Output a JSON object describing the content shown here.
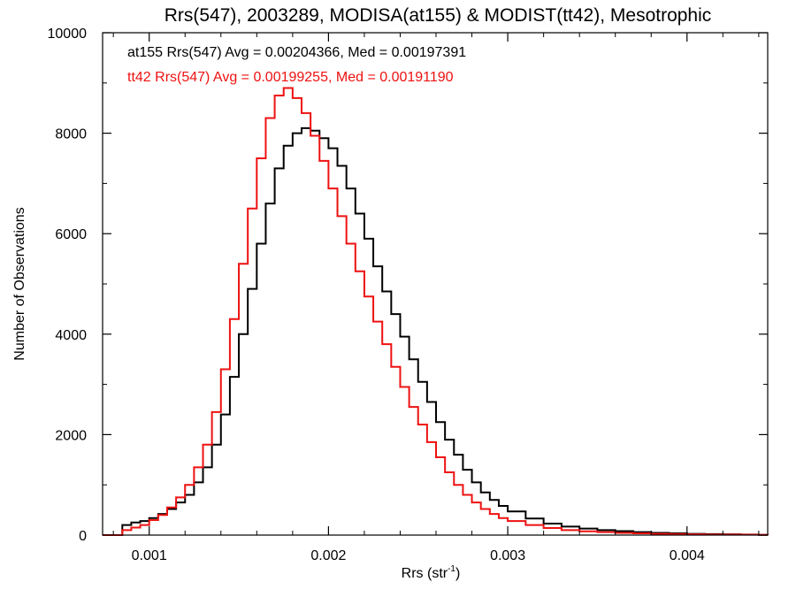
{
  "chart_data": {
    "type": "line",
    "step": true,
    "title": "Rrs(547), 2003289, MODISA(at155) & MODIST(tt42), Mesotrophic",
    "xlabel": "Rrs (str",
    "xlabel_sup": "-1",
    "xlabel_suffix": ")",
    "ylabel": "Number of Observations",
    "xlim": [
      0.00074,
      0.00445
    ],
    "ylim": [
      0,
      10000
    ],
    "x_ticks": [
      0.001,
      0.002,
      0.003,
      0.004
    ],
    "x_tick_labels": [
      "0.001",
      "0.002",
      "0.003",
      "0.004"
    ],
    "y_ticks": [
      0,
      2000,
      4000,
      6000,
      8000,
      10000
    ],
    "y_tick_labels": [
      "0",
      "2000",
      "4000",
      "6000",
      "8000",
      "10000"
    ],
    "grid": false,
    "legend_placement": "top-left",
    "annotations": [
      {
        "text": "at155 Rrs(547) Avg = 0.00204366, Med = 0.00197391",
        "color": "#000000"
      },
      {
        "text": "tt42 Rrs(547) Avg = 0.00199255, Med = 0.00191190",
        "color": "#ee1111"
      }
    ],
    "series": [
      {
        "color": "#000000",
        "x": [
          0.00074,
          0.0008,
          0.00085,
          0.0009,
          0.00095,
          0.001,
          0.00105,
          0.0011,
          0.00115,
          0.0012,
          0.00125,
          0.0013,
          0.00135,
          0.0014,
          0.00145,
          0.0015,
          0.00155,
          0.0016,
          0.00165,
          0.0017,
          0.00175,
          0.0018,
          0.00185,
          0.0019,
          0.00195,
          0.002,
          0.00205,
          0.0021,
          0.00215,
          0.0022,
          0.00225,
          0.0023,
          0.00235,
          0.0024,
          0.00245,
          0.0025,
          0.00255,
          0.0026,
          0.00265,
          0.0027,
          0.00275,
          0.0028,
          0.00285,
          0.0029,
          0.00295,
          0.003,
          0.0031,
          0.0032,
          0.0033,
          0.0034,
          0.0035,
          0.0036,
          0.0037,
          0.0038,
          0.0039,
          0.004,
          0.0041,
          0.0042,
          0.0043,
          0.0044,
          0.00445
        ],
        "y": [
          0,
          0,
          200,
          250,
          280,
          340,
          420,
          520,
          650,
          800,
          1050,
          1350,
          1800,
          2400,
          3150,
          4000,
          4900,
          5800,
          6600,
          7300,
          7750,
          8000,
          8100,
          8050,
          7900,
          7700,
          7350,
          6900,
          6400,
          5900,
          5350,
          4850,
          4400,
          3950,
          3500,
          3050,
          2650,
          2250,
          1900,
          1600,
          1300,
          1050,
          850,
          700,
          580,
          470,
          330,
          230,
          170,
          130,
          100,
          80,
          60,
          45,
          35,
          25,
          20,
          15,
          10,
          5,
          0
        ]
      },
      {
        "color": "#ee1111",
        "x": [
          0.00074,
          0.0008,
          0.00085,
          0.0009,
          0.00095,
          0.001,
          0.00105,
          0.0011,
          0.00115,
          0.0012,
          0.00125,
          0.0013,
          0.00135,
          0.0014,
          0.00145,
          0.0015,
          0.00155,
          0.0016,
          0.00165,
          0.0017,
          0.00175,
          0.0018,
          0.00185,
          0.0019,
          0.00195,
          0.002,
          0.00205,
          0.0021,
          0.00215,
          0.0022,
          0.00225,
          0.0023,
          0.00235,
          0.0024,
          0.00245,
          0.0025,
          0.00255,
          0.0026,
          0.00265,
          0.0027,
          0.00275,
          0.0028,
          0.00285,
          0.0029,
          0.00295,
          0.003,
          0.0031,
          0.0032,
          0.0033,
          0.0034,
          0.0035,
          0.0036,
          0.0037,
          0.0038,
          0.0039,
          0.004,
          0.0041,
          0.0042,
          0.0043,
          0.0044,
          0.00445
        ],
        "y": [
          0,
          0,
          100,
          150,
          200,
          300,
          400,
          550,
          750,
          1000,
          1350,
          1800,
          2450,
          3300,
          4300,
          5400,
          6500,
          7500,
          8300,
          8750,
          8900,
          8700,
          8400,
          7950,
          7450,
          6900,
          6350,
          5800,
          5250,
          4750,
          4250,
          3800,
          3350,
          2950,
          2550,
          2200,
          1850,
          1550,
          1250,
          1000,
          800,
          650,
          520,
          420,
          340,
          280,
          200,
          140,
          100,
          75,
          60,
          45,
          35,
          25,
          20,
          15,
          12,
          10,
          8,
          5,
          0
        ]
      }
    ]
  }
}
